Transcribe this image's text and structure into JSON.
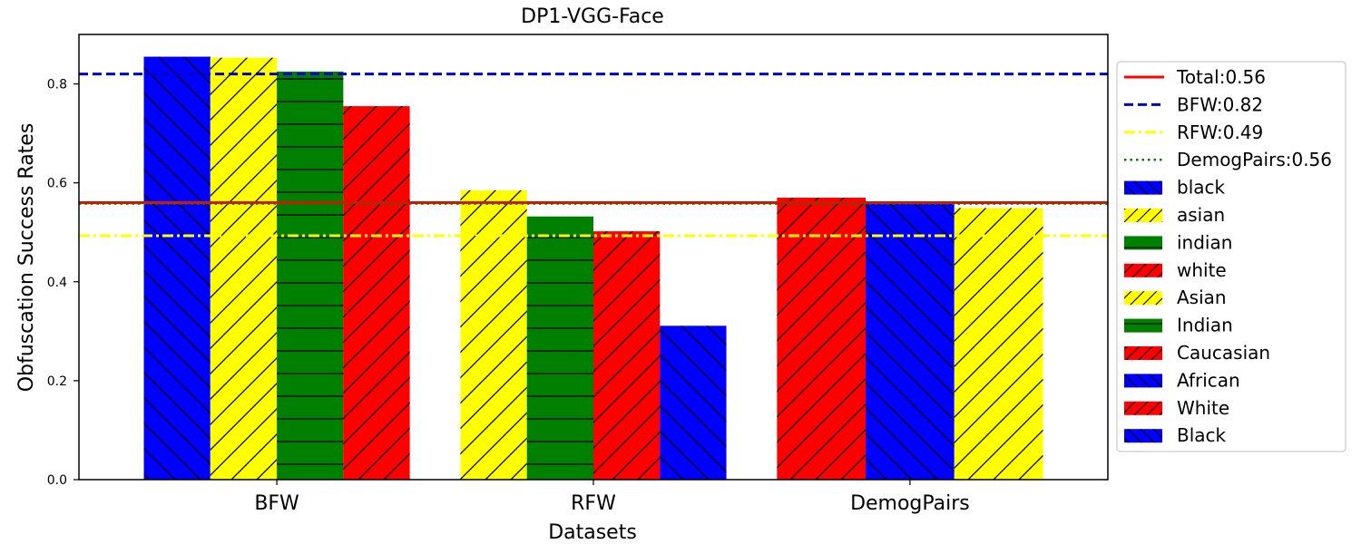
{
  "chart_data": {
    "type": "bar",
    "title": "DP1-VGG-Face",
    "xlabel": "Datasets",
    "ylabel": "Obfuscation Success Rates",
    "ylim": [
      0,
      0.9
    ],
    "yticks": [
      "0.0",
      "0.2",
      "0.4",
      "0.6",
      "0.8"
    ],
    "categories": [
      "BFW",
      "RFW",
      "DemogPairs"
    ],
    "legend_position": "right, outside plot",
    "groups": [
      {
        "category": "BFW",
        "bars": [
          {
            "series": "black",
            "value": 0.855,
            "color": "#0000ff",
            "hatch": "backslash"
          },
          {
            "series": "asian",
            "value": 0.853,
            "color": "#ffff00",
            "hatch": "slash"
          },
          {
            "series": "indian",
            "value": 0.825,
            "color": "#008000",
            "hatch": "horizontal"
          },
          {
            "series": "white",
            "value": 0.755,
            "color": "#ff0000",
            "hatch": "slash"
          }
        ]
      },
      {
        "category": "RFW",
        "bars": [
          {
            "series": "Asian",
            "value": 0.585,
            "color": "#ffff00",
            "hatch": "slash"
          },
          {
            "series": "Indian",
            "value": 0.532,
            "color": "#008000",
            "hatch": "horizontal"
          },
          {
            "series": "Caucasian",
            "value": 0.502,
            "color": "#ff0000",
            "hatch": "slash"
          },
          {
            "series": "African",
            "value": 0.311,
            "color": "#0000ff",
            "hatch": "backslash"
          }
        ]
      },
      {
        "category": "DemogPairs",
        "bars": [
          {
            "series": "White",
            "value": 0.57,
            "color": "#ff0000",
            "hatch": "slash"
          },
          {
            "series": "Black",
            "value": 0.562,
            "color": "#0000ff",
            "hatch": "backslash"
          },
          {
            "series": "Asian",
            "value": 0.549,
            "color": "#ffff00",
            "hatch": "slash"
          }
        ]
      }
    ],
    "reference_lines": [
      {
        "label": "Total:0.56",
        "value": 0.56,
        "color": "#ff0000",
        "style": "solid"
      },
      {
        "label": "BFW:0.82",
        "value": 0.82,
        "color": "#0000cc",
        "style": "dashed"
      },
      {
        "label": "RFW:0.49",
        "value": 0.493,
        "color": "#ffff00",
        "style": "dashdot"
      },
      {
        "label": "DemogPairs:0.56",
        "value": 0.558,
        "color": "#008000",
        "style": "dotted"
      }
    ],
    "legend": [
      {
        "label": "Total:0.56",
        "kind": "line",
        "color": "#ff0000",
        "style": "solid"
      },
      {
        "label": "BFW:0.82",
        "kind": "line",
        "color": "#0000cc",
        "style": "dashed"
      },
      {
        "label": "RFW:0.49",
        "kind": "line",
        "color": "#ffff00",
        "style": "dashdot"
      },
      {
        "label": "DemogPairs:0.56",
        "kind": "line",
        "color": "#008000",
        "style": "dotted"
      },
      {
        "label": "black",
        "kind": "patch",
        "color": "#0000ff",
        "hatch": "backslash"
      },
      {
        "label": "asian",
        "kind": "patch",
        "color": "#ffff00",
        "hatch": "slash"
      },
      {
        "label": "indian",
        "kind": "patch",
        "color": "#008000",
        "hatch": "horizontal"
      },
      {
        "label": "white",
        "kind": "patch",
        "color": "#ff0000",
        "hatch": "slash"
      },
      {
        "label": "Asian",
        "kind": "patch",
        "color": "#ffff00",
        "hatch": "slash"
      },
      {
        "label": "Indian",
        "kind": "patch",
        "color": "#008000",
        "hatch": "horizontal"
      },
      {
        "label": "Caucasian",
        "kind": "patch",
        "color": "#ff0000",
        "hatch": "slash"
      },
      {
        "label": "African",
        "kind": "patch",
        "color": "#0000ff",
        "hatch": "backslash"
      },
      {
        "label": "White",
        "kind": "patch",
        "color": "#ff0000",
        "hatch": "slash"
      },
      {
        "label": "Black",
        "kind": "patch",
        "color": "#0000ff",
        "hatch": "backslash"
      }
    ]
  }
}
